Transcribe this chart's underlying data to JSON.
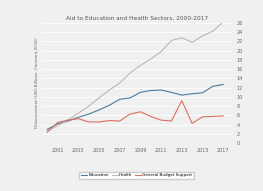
{
  "title": "Aid to Education and Health Sectors, 2000-2017",
  "ylabel": "Disbursement (USD Billions, Constant 2016)",
  "ylim": [
    0,
    26
  ],
  "yticks": [
    0,
    2,
    4,
    6,
    8,
    10,
    12,
    14,
    16,
    18,
    20,
    22,
    24,
    26
  ],
  "years": [
    2000,
    2001,
    2002,
    2003,
    2004,
    2005,
    2006,
    2007,
    2008,
    2009,
    2010,
    2011,
    2012,
    2013,
    2014,
    2015,
    2016,
    2017
  ],
  "education": [
    3.0,
    4.2,
    4.8,
    5.6,
    6.3,
    7.2,
    8.2,
    9.5,
    9.8,
    11.0,
    11.4,
    11.5,
    11.0,
    10.4,
    10.7,
    10.9,
    12.3,
    12.7
  ],
  "health": [
    2.6,
    3.8,
    5.0,
    6.5,
    8.0,
    9.8,
    11.5,
    13.0,
    15.2,
    16.8,
    18.2,
    19.8,
    22.2,
    22.8,
    21.8,
    23.2,
    24.2,
    26.2
  ],
  "gbs": [
    2.4,
    4.5,
    5.0,
    5.3,
    4.6,
    4.6,
    4.9,
    4.8,
    6.3,
    6.8,
    5.8,
    5.0,
    4.8,
    9.2,
    4.3,
    5.7,
    5.8,
    5.9
  ],
  "education_color": "#4a7b9d",
  "health_color": "#b8b8b8",
  "gbs_color": "#d97060",
  "background_color": "#f0f0f0",
  "xticks": [
    2001,
    2003,
    2005,
    2007,
    2009,
    2011,
    2013,
    2015,
    2017
  ]
}
